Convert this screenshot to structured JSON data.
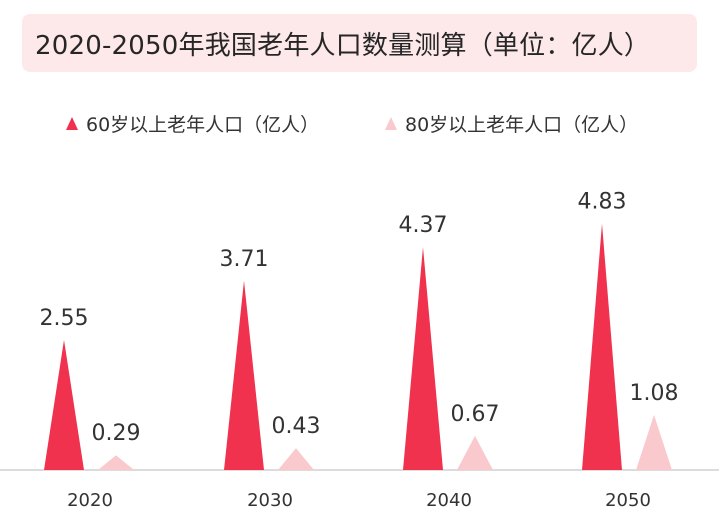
{
  "colors": {
    "series_60": "#f0324e",
    "series_80": "#f9c9cd",
    "title_background": "#fde8ea",
    "axis": "#d0d0d0"
  },
  "chart_data": {
    "type": "bar",
    "bar_shape": "triangle",
    "title": "2020-2050年我国老年人口数量测算（单位：亿人）",
    "categories": [
      "2020",
      "2030",
      "2040",
      "2050"
    ],
    "series": [
      {
        "name": "60岁以上老年人口（亿人）",
        "values": [
          2.55,
          3.71,
          4.37,
          4.83
        ],
        "value_labels": [
          "2.55",
          "3.71",
          "4.37",
          "4.83"
        ]
      },
      {
        "name": "80岁以上老年人口（亿人）",
        "values": [
          0.29,
          0.43,
          0.67,
          1.08
        ],
        "value_labels": [
          "0.29",
          "0.43",
          "0.67",
          "1.08"
        ]
      }
    ],
    "ylim": [
      0,
      5
    ],
    "legend_position": "top",
    "grid": false,
    "xlabel": "",
    "ylabel": ""
  }
}
